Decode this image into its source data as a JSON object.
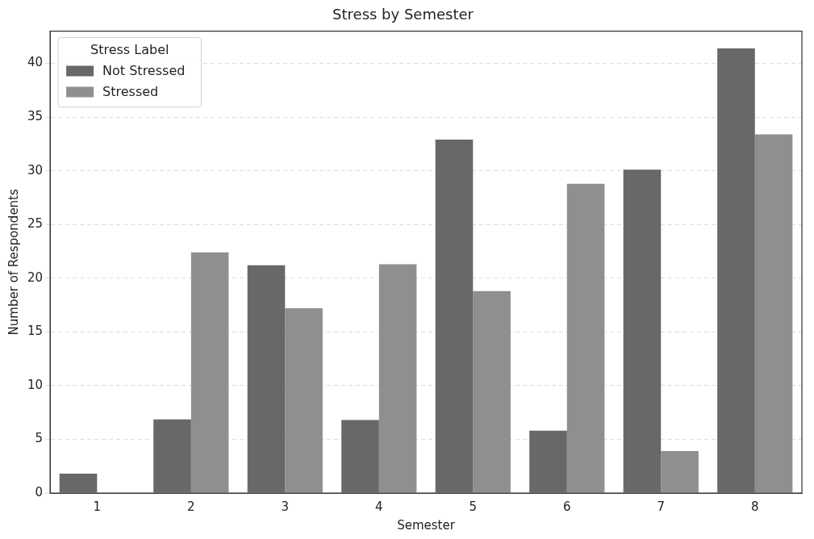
{
  "chart_data": {
    "type": "bar",
    "title": "Stress by Semester",
    "xlabel": "Semester",
    "ylabel": "Number of Respondents",
    "legend_title": "Stress Label",
    "categories": [
      "1",
      "2",
      "3",
      "4",
      "5",
      "6",
      "7",
      "8"
    ],
    "series": [
      {
        "name": "Not Stressed",
        "color": "#686868",
        "values": [
          1.8,
          6.85,
          21.2,
          6.8,
          32.9,
          5.8,
          30.1,
          41.4
        ]
      },
      {
        "name": "Stressed",
        "color": "#8f8f8f",
        "values": [
          null,
          22.4,
          17.2,
          21.3,
          18.8,
          28.8,
          3.9,
          33.4
        ]
      }
    ],
    "ylim": [
      0,
      43
    ],
    "yticks": [
      0,
      5,
      10,
      15,
      20,
      25,
      30,
      35,
      40
    ],
    "grid": "y",
    "legend": "top left"
  }
}
